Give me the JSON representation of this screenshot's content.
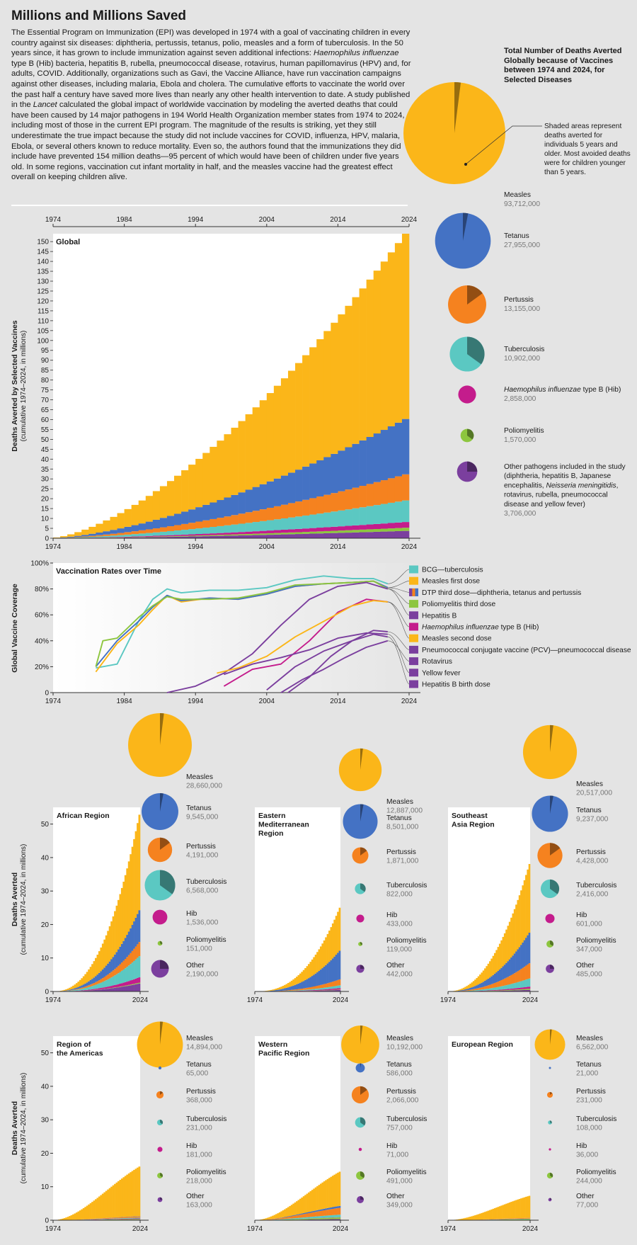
{
  "title": "Millions and Millions Saved",
  "intro": {
    "p1": "The Essential Program on Immunization (EPI) was developed in 1974 with a goal of vaccinating children in every country against six diseases: diphtheria, pertussis, tetanus, polio, measles and a form of tuberculosis. In the 50 years since, it has grown to include immunization against seven additional infections: ",
    "p1_italic": "Haemophilus influenzae",
    "p2": " type B (Hib) bacteria, hepatitis B, rubella, pneumococcal disease, rotavirus, human papillomavirus (HPV) and, for adults, COVID. Additionally, organizations such as Gavi, the Vaccine Alliance, have run vaccination campaigns against other diseases, including malaria, Ebola and cholera. The cumulative efforts to vaccinate the world over the past half a century have saved more lives than nearly any other health intervention to date. A study published in the ",
    "p2_italic": "Lancet",
    "p3": " calculated the global impact of worldwide vaccination by modeling the averted deaths that could have been caused by 14 major pathogens in 194 World Health Organization member states from 1974 to 2024, including most of those in the current EPI program. The magnitude of the results is striking, yet they still underestimate the true impact because the study did not include vaccines for COVID, influenza, HPV, malaria, Ebola, or several others known to reduce mortality. Even so, the authors found that the immunizations they did include have prevented 154 million deaths—95 percent of which would have been of children under five years old. In some regions, vaccination cut infant mortality in half, and the measles vaccine had the greatest effect overall on keeping children alive."
  },
  "pie_title": "Total Number of Deaths Averted Globally because of Vaccines between 1974 and 2024, for Selected Diseases",
  "shade_note": "Shaded areas represent deaths averted for individuals 5 years and older. Most avoided deaths were for children younger than 5 years.",
  "colors": {
    "measles": "#fbb619",
    "tetanus": "#4472c4",
    "pertussis": "#f5821f",
    "tuberculosis": "#5bc8c2",
    "hib": "#c41c8c",
    "polio": "#8dc63f",
    "other": "#7b3f9e",
    "bg": "#e4e4e4",
    "plot": "#ffffff"
  },
  "chart_data": [
    {
      "id": "global-area",
      "type": "area",
      "title": "Global",
      "ylabel": "Deaths Averted by Selected Vaccines",
      "ylabel_sub": "(cumulative 1974–2024, in millions)",
      "x": [
        1974,
        1984,
        1994,
        2004,
        2014,
        2024
      ],
      "xticks": [
        "1974",
        "1984",
        "1994",
        "2004",
        "2014",
        "2024"
      ],
      "ylim": [
        0,
        154
      ],
      "yticks": [
        "0",
        "5",
        "10",
        "15",
        "20",
        "25",
        "30",
        "35",
        "40",
        "45",
        "50",
        "55",
        "60",
        "65",
        "70",
        "75",
        "80",
        "85",
        "90",
        "95",
        "100",
        "105",
        "110",
        "115",
        "120",
        "125",
        "130",
        "135",
        "140",
        "145",
        "150"
      ],
      "series": [
        {
          "name": "Other",
          "key": "other",
          "values": [
            0,
            0.4,
            1.1,
            1.8,
            2.7,
            3.7
          ]
        },
        {
          "name": "Poliomyelitis",
          "key": "polio",
          "values": [
            0,
            0.3,
            0.7,
            1.0,
            1.3,
            1.6
          ]
        },
        {
          "name": "Hib",
          "key": "hib",
          "values": [
            0,
            0.1,
            0.3,
            0.9,
            1.9,
            2.9
          ]
        },
        {
          "name": "Tuberculosis",
          "key": "tuberculosis",
          "values": [
            0,
            1.5,
            3.7,
            6.0,
            8.5,
            10.9
          ]
        },
        {
          "name": "Pertussis",
          "key": "pertussis",
          "values": [
            0,
            1.5,
            4.2,
            7.4,
            10.4,
            13.2
          ]
        },
        {
          "name": "Tetanus",
          "key": "tetanus",
          "values": [
            0,
            2.2,
            7.0,
            13.5,
            20.5,
            28.0
          ]
        },
        {
          "name": "Measles",
          "key": "measles",
          "values": [
            0,
            8.0,
            27.0,
            50.0,
            72.0,
            93.7
          ]
        }
      ]
    },
    {
      "id": "global-pies",
      "type": "pie",
      "series": [
        {
          "key": "measles",
          "name": "Measles",
          "value": "93,712,000",
          "v": 93712000,
          "older": 0.02
        },
        {
          "key": "tetanus",
          "name": "Tetanus",
          "value": "27,955,000",
          "v": 27955000,
          "older": 0.03
        },
        {
          "key": "pertussis",
          "name": "Pertussis",
          "value": "13,155,000",
          "v": 13155000,
          "older": 0.15
        },
        {
          "key": "tuberculosis",
          "name": "Tuberculosis",
          "value": "10,902,000",
          "v": 10902000,
          "older": 0.35
        },
        {
          "key": "hib",
          "name": "Haemophilus influenzae type B (Hib)",
          "name_italic": "Haemophilus influenzae",
          "name_rest": " type B (Hib)",
          "value": "2,858,000",
          "v": 2858000,
          "older": 0.0
        },
        {
          "key": "polio",
          "name": "Poliomyelitis",
          "value": "1,570,000",
          "v": 1570000,
          "older": 0.35
        },
        {
          "key": "other",
          "name": "Other pathogens included in the study (diphtheria, hepatitis B, Japanese encephalitis, Neisseria meningitidis, rotavirus, rubella, pneumococcal disease and yellow fever)",
          "lines": [
            "Other pathogens included in the study",
            "(diphtheria, hepatitis B, Japanese",
            "encephalitis, |Neisseria meningitidis|,",
            "rotavirus, rubella, pneumococcal",
            "disease and yellow fever)"
          ],
          "value": "3,706,000",
          "v": 3706000,
          "older": 0.25
        }
      ]
    },
    {
      "id": "coverage",
      "type": "line",
      "title": "Vaccination Rates over Time",
      "ylabel": "Global Vaccine Coverage",
      "xticks": [
        "1974",
        "1984",
        "1994",
        "2004",
        "2014",
        "2024"
      ],
      "yticks": [
        "0",
        "20%",
        "40%",
        "60%",
        "80%",
        "100%"
      ],
      "xlim": [
        1974,
        2024
      ],
      "ylim": [
        0,
        100
      ],
      "series": [
        {
          "name": "BCG—tuberculosis",
          "color": "#5bc8c2",
          "x": [
            1980,
            1983,
            1986,
            1988,
            1990,
            1992,
            1996,
            2000,
            2004,
            2008,
            2012,
            2016,
            2019,
            2021
          ],
          "y": [
            19,
            22,
            55,
            72,
            80,
            77,
            79,
            79,
            81,
            87,
            90,
            88,
            88,
            84
          ]
        },
        {
          "name": "Measles first dose",
          "color": "#fbb619",
          "x": [
            1980,
            1983,
            1986,
            1988,
            1990,
            1992,
            1996,
            2000,
            2004,
            2008,
            2012,
            2016,
            2019,
            2021
          ],
          "y": [
            16,
            38,
            52,
            64,
            75,
            70,
            73,
            72,
            76,
            82,
            84,
            85,
            86,
            81
          ]
        },
        {
          "name": "DTP third dose—diphtheria, tetanus and pertussis",
          "color": "#4472c4",
          "x": [
            1980,
            1983,
            1986,
            1988,
            1990,
            1992,
            1996,
            2000,
            2004,
            2008,
            2012,
            2016,
            2019,
            2021
          ],
          "y": [
            20,
            40,
            55,
            66,
            75,
            71,
            73,
            72,
            76,
            82,
            84,
            85,
            86,
            81
          ]
        },
        {
          "name": "Poliomyelitis third dose",
          "color": "#8dc63f",
          "x": [
            1980,
            1981,
            1983,
            1986,
            1988,
            1990,
            1992,
            1996,
            2000,
            2004,
            2008,
            2012,
            2016,
            2019,
            2021
          ],
          "y": [
            20,
            40,
            42,
            58,
            67,
            74,
            72,
            72,
            73,
            77,
            83,
            84,
            85,
            86,
            80
          ]
        },
        {
          "name": "Hepatitis B",
          "color": "#7b3f9e",
          "x": [
            1990,
            1994,
            1998,
            2002,
            2006,
            2010,
            2014,
            2018,
            2021
          ],
          "y": [
            0,
            5,
            15,
            30,
            52,
            72,
            82,
            85,
            80
          ]
        },
        {
          "name": "Haemophilus influenzae type B (Hib)",
          "name_italic": "Haemophilus influenzae",
          "name_rest": " type B (Hib)",
          "color": "#c41c8c",
          "x": [
            1998,
            2002,
            2006,
            2010,
            2014,
            2018,
            2021
          ],
          "y": [
            5,
            18,
            22,
            40,
            62,
            72,
            70
          ]
        },
        {
          "name": "Measles second dose",
          "color": "#fbb619",
          "x": [
            1997,
            2000,
            2004,
            2008,
            2012,
            2016,
            2019,
            2021
          ],
          "y": [
            15,
            19,
            28,
            43,
            55,
            67,
            71,
            70
          ]
        },
        {
          "name": "Pneumococcal conjugate vaccine (PCV)—pneumococcal disease",
          "color": "#7b3f9e",
          "x": [
            2007,
            2010,
            2013,
            2016,
            2019,
            2021
          ],
          "y": [
            0,
            12,
            28,
            40,
            48,
            47
          ]
        },
        {
          "name": "Rotavirus",
          "color": "#7b3f9e",
          "x": [
            2006,
            2009,
            2012,
            2015,
            2018,
            2021
          ],
          "y": [
            0,
            10,
            18,
            27,
            35,
            40
          ]
        },
        {
          "name": "Yellow fever",
          "color": "#7b3f9e",
          "x": [
            1998,
            2002,
            2006,
            2010,
            2014,
            2018,
            2021
          ],
          "y": [
            14,
            22,
            27,
            33,
            42,
            46,
            45
          ]
        },
        {
          "name": "Hepatitis B birth dose",
          "color": "#7b3f9e",
          "x": [
            2004,
            2008,
            2012,
            2016,
            2019,
            2021
          ],
          "y": [
            2,
            20,
            32,
            40,
            45,
            43
          ]
        }
      ]
    },
    {
      "id": "regional",
      "type": "area",
      "ylabel": "Deaths Averted",
      "ylabel_sub": "(cumulative 1974–2024, in millions)",
      "xticks": [
        "1974",
        "2024"
      ],
      "yticks": [
        "0",
        "10",
        "20",
        "30",
        "40",
        "50"
      ],
      "ylim": [
        0,
        55
      ],
      "pie_labels": [
        "Measles",
        "Tetanus",
        "Pertussis",
        "Tuberculosis",
        "Hib",
        "Poliomyelitis",
        "Other"
      ],
      "regions": [
        {
          "name": "African Region",
          "title_lines": [
            "African Region"
          ],
          "total": 52.8,
          "curve": 2.4,
          "values": [
            "28,660,000",
            "9,545,000",
            "4,191,000",
            "6,568,000",
            "1,536,000",
            "151,000",
            "2,190,000"
          ],
          "v": [
            28660000,
            9545000,
            4191000,
            6568000,
            1536000,
            151000,
            2190000
          ]
        },
        {
          "name": "Eastern Mediterranean Region",
          "title_lines": [
            "Eastern",
            "Mediterranean",
            "Region"
          ],
          "total": 25.2,
          "curve": 2.5,
          "values": [
            "12,887,000",
            "8,501,000",
            "1,871,000",
            "822,000",
            "433,000",
            "119,000",
            "442,000"
          ],
          "v": [
            12887000,
            8501000,
            1871000,
            822000,
            433000,
            119000,
            442000
          ]
        },
        {
          "name": "Southeast Asia Region",
          "title_lines": [
            "Southeast",
            "Asia Region"
          ],
          "total": 38.0,
          "curve": 2.2,
          "values": [
            "20,517,000",
            "9,237,000",
            "4,428,000",
            "2,416,000",
            "601,000",
            "347,000",
            "485,000"
          ],
          "v": [
            20517000,
            9237000,
            4428000,
            2416000,
            601000,
            347000,
            485000
          ]
        },
        {
          "name": "Region of the Americas",
          "title_lines": [
            "Region of",
            "the Americas"
          ],
          "total": 16.1,
          "curve": 0.6,
          "values": [
            "14,894,000",
            "65,000",
            "368,000",
            "231,000",
            "181,000",
            "218,000",
            "163,000"
          ],
          "v": [
            14894000,
            65000,
            368000,
            231000,
            181000,
            218000,
            163000
          ]
        },
        {
          "name": "Western Pacific Region",
          "title_lines": [
            "Western",
            "Pacific Region"
          ],
          "total": 14.6,
          "curve": 0.9,
          "values": [
            "10,192,000",
            "586,000",
            "2,066,000",
            "757,000",
            "71,000",
            "491,000",
            "349,000"
          ],
          "v": [
            10192000,
            586000,
            2066000,
            757000,
            71000,
            491000,
            349000
          ]
        },
        {
          "name": "European Region",
          "title_lines": [
            "European Region"
          ],
          "total": 7.3,
          "curve": 0.5,
          "values": [
            "6,562,000",
            "21,000",
            "231,000",
            "108,000",
            "36,000",
            "244,000",
            "77,000"
          ],
          "v": [
            6562000,
            21000,
            231000,
            108000,
            36000,
            244000,
            77000
          ]
        }
      ]
    }
  ]
}
